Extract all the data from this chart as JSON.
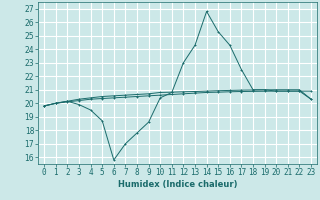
{
  "title": "",
  "xlabel": "Humidex (Indice chaleur)",
  "ylabel": "",
  "background_color": "#cce8e8",
  "grid_color": "#ffffff",
  "line_color": "#1a6b6b",
  "xlim": [
    -0.5,
    23.5
  ],
  "ylim": [
    15.5,
    27.5
  ],
  "yticks": [
    16,
    17,
    18,
    19,
    20,
    21,
    22,
    23,
    24,
    25,
    26,
    27
  ],
  "xticks": [
    0,
    1,
    2,
    3,
    4,
    5,
    6,
    7,
    8,
    9,
    10,
    11,
    12,
    13,
    14,
    15,
    16,
    17,
    18,
    19,
    20,
    21,
    22,
    23
  ],
  "series1_x": [
    0,
    1,
    2,
    3,
    4,
    5,
    6,
    7,
    8,
    9,
    10,
    11,
    12,
    13,
    14,
    15,
    16,
    17,
    18,
    19,
    20,
    21,
    22,
    23
  ],
  "series1_y": [
    19.8,
    20.0,
    20.1,
    20.2,
    20.3,
    20.35,
    20.4,
    20.45,
    20.5,
    20.55,
    20.6,
    20.65,
    20.7,
    20.75,
    20.8,
    20.82,
    20.85,
    20.87,
    20.88,
    20.89,
    20.9,
    20.9,
    20.9,
    20.9
  ],
  "series2_x": [
    0,
    1,
    2,
    3,
    4,
    5,
    6,
    7,
    8,
    9,
    10,
    11,
    12,
    13,
    14,
    15,
    16,
    17,
    18,
    19,
    20,
    21,
    22,
    23
  ],
  "series2_y": [
    19.8,
    20.0,
    20.15,
    19.9,
    19.5,
    18.7,
    15.8,
    17.0,
    17.8,
    18.6,
    20.4,
    20.8,
    23.0,
    24.3,
    26.8,
    25.3,
    24.3,
    22.5,
    21.0,
    21.0,
    20.9,
    20.9,
    20.9,
    20.3
  ],
  "series3_x": [
    0,
    1,
    2,
    3,
    4,
    5,
    6,
    7,
    8,
    9,
    10,
    11,
    12,
    13,
    14,
    15,
    16,
    17,
    18,
    19,
    20,
    21,
    22,
    23
  ],
  "series3_y": [
    19.8,
    20.0,
    20.15,
    20.3,
    20.4,
    20.5,
    20.55,
    20.6,
    20.65,
    20.7,
    20.8,
    20.82,
    20.85,
    20.87,
    20.9,
    20.93,
    20.95,
    20.97,
    20.98,
    20.99,
    21.0,
    21.0,
    21.0,
    20.3
  ],
  "tick_fontsize": 5.5,
  "xlabel_fontsize": 6.0
}
